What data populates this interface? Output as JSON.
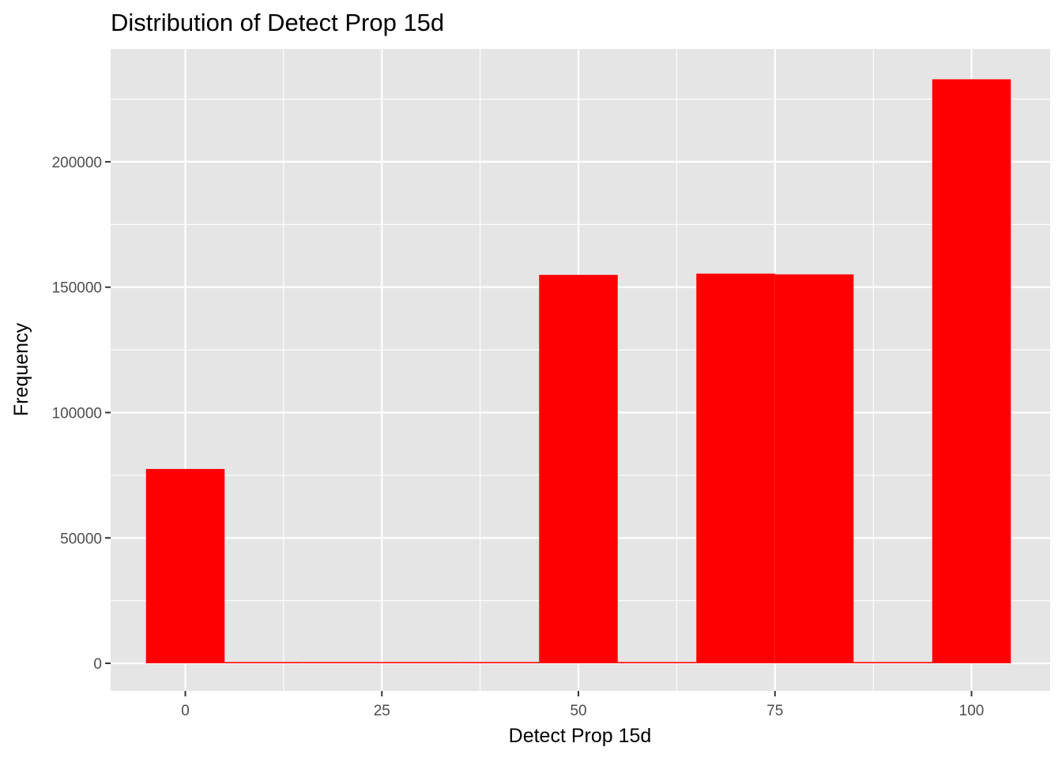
{
  "chart_data": {
    "type": "bar",
    "title": "Distribution of Detect Prop 15d",
    "xlabel": "Detect Prop 15d",
    "ylabel": "Frequency",
    "xlim": [
      -9.5,
      110
    ],
    "ylim": [
      -11000,
      245000
    ],
    "x_ticks": [
      0,
      25,
      50,
      75,
      100
    ],
    "x_tick_labels": [
      "0",
      "25",
      "50",
      "75",
      "100"
    ],
    "y_ticks": [
      0,
      50000,
      100000,
      150000,
      200000
    ],
    "y_tick_labels": [
      "0",
      "50000",
      "100000",
      "150000",
      "200000"
    ],
    "bin_width": 10,
    "bins": [
      {
        "x": 0,
        "count": 77500
      },
      {
        "x": 10,
        "count": 500
      },
      {
        "x": 20,
        "count": 500
      },
      {
        "x": 30,
        "count": 500
      },
      {
        "x": 40,
        "count": 500
      },
      {
        "x": 50,
        "count": 154900
      },
      {
        "x": 60,
        "count": 500
      },
      {
        "x": 70,
        "count": 155400
      },
      {
        "x": 80,
        "count": 155100
      },
      {
        "x": 90,
        "count": 500
      },
      {
        "x": 100,
        "count": 232900
      }
    ],
    "bar_color": "#ff0000",
    "panel_color": "#e5e5e5",
    "grid_color": "#ffffff",
    "grid": true,
    "legend": "none"
  }
}
